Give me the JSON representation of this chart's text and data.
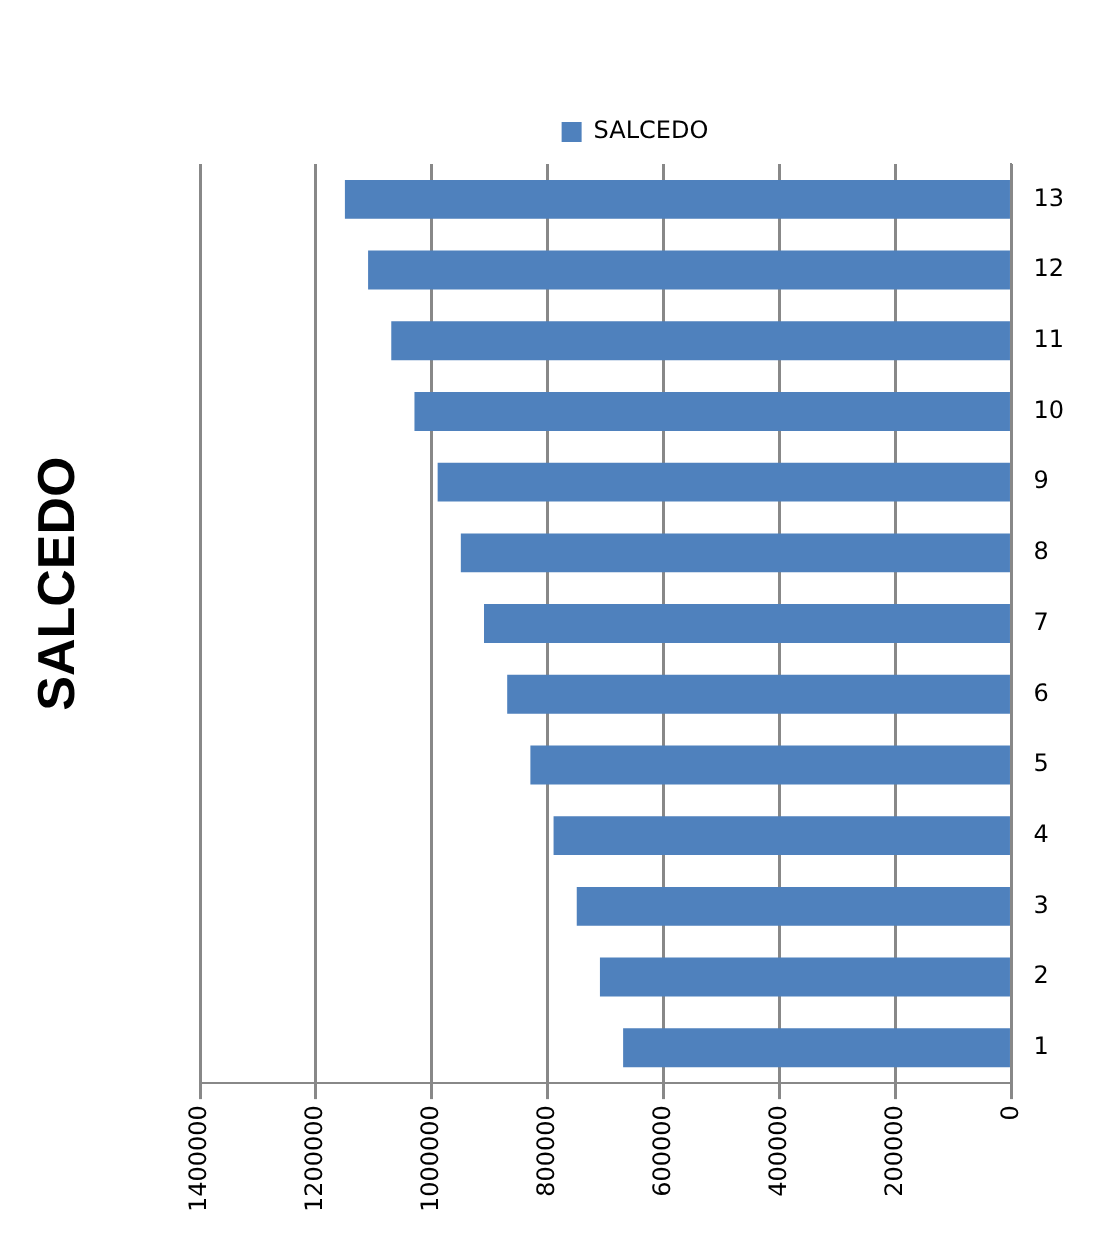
{
  "chart_data": {
    "type": "bar",
    "orientation": "horizontal",
    "title": "SALCEDO",
    "categories": [
      "13",
      "12",
      "11",
      "10",
      "9",
      "8",
      "7",
      "6",
      "5",
      "4",
      "3",
      "2",
      "1"
    ],
    "series": [
      {
        "name": "SALCEDO",
        "color": "#4f81bd",
        "values": [
          1150000,
          1110000,
          1070000,
          1030000,
          990000,
          950000,
          910000,
          870000,
          830000,
          790000,
          750000,
          710000,
          670000
        ]
      }
    ],
    "xlim": [
      1400000,
      0
    ],
    "xticks": [
      1400000,
      1200000,
      1000000,
      800000,
      600000,
      400000,
      200000,
      0
    ],
    "grid": "x",
    "legend": "top"
  }
}
